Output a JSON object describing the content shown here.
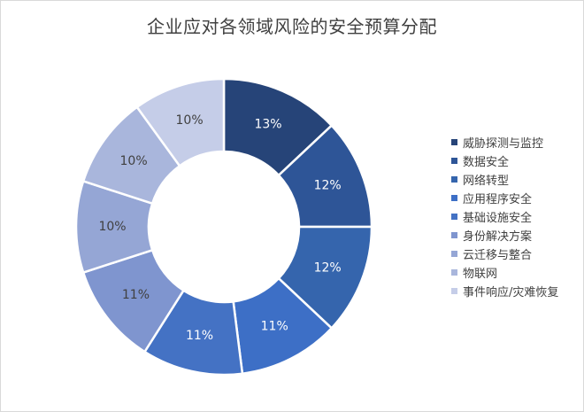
{
  "chart_data": {
    "type": "pie",
    "title": "企业应对各领域风险的安全预算分配",
    "categories": [
      "威胁探测与监控",
      "数据安全",
      "网络转型",
      "应用程序安全",
      "基础设施安全",
      "身份解决方案",
      "云迁移与整合",
      "物联网",
      "事件响应/灾难恢复"
    ],
    "values": [
      13,
      12,
      12,
      11,
      11,
      11,
      10,
      10,
      10
    ],
    "labels": [
      "13%",
      "12%",
      "12%",
      "11%",
      "11%",
      "11%",
      "10%",
      "10%",
      "10%"
    ],
    "colors": [
      "#264478",
      "#2e5597",
      "#3565ad",
      "#3d6fc6",
      "#4472c4",
      "#7f95cf",
      "#95a6d5",
      "#a9b6dc",
      "#c5cde8"
    ],
    "legend_position": "right",
    "donut": true
  }
}
